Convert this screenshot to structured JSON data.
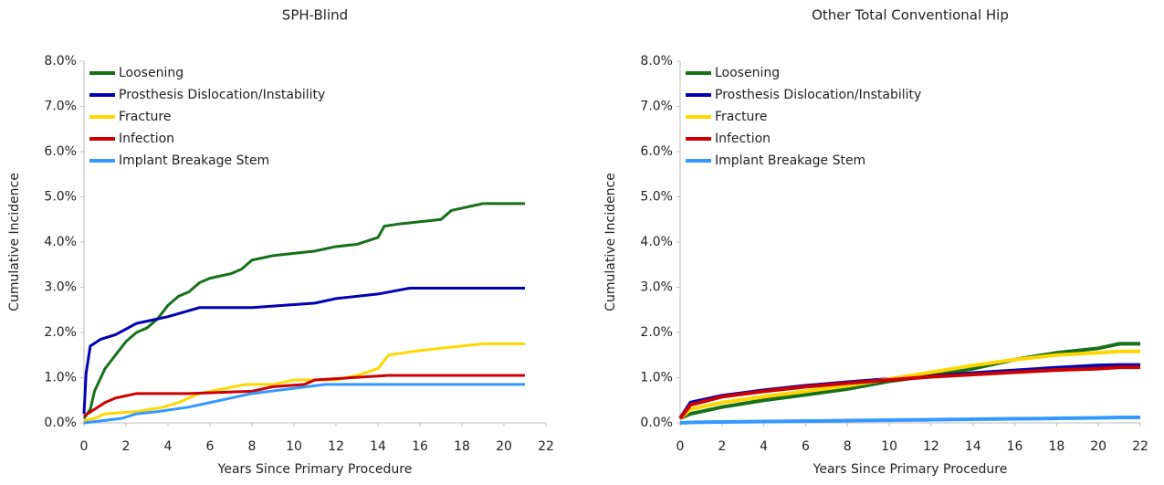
{
  "chart_data": [
    {
      "type": "line",
      "title": "SPH-Blind",
      "x_label": "Years Since Primary Procedure",
      "y_label": "Cumulative Incidence",
      "xlim": [
        0,
        22
      ],
      "xticks": [
        0,
        2,
        4,
        6,
        8,
        10,
        12,
        14,
        16,
        18,
        20,
        22
      ],
      "ylim": [
        0,
        8
      ],
      "yticks": [
        {
          "value": 0,
          "label": "0.0%"
        },
        {
          "value": 1,
          "label": "1.0%"
        },
        {
          "value": 2,
          "label": "2.0%"
        },
        {
          "value": 3,
          "label": "3.0%"
        },
        {
          "value": 4,
          "label": "4.0%"
        },
        {
          "value": 5,
          "label": "5.0%"
        },
        {
          "value": 6,
          "label": "6.0%"
        },
        {
          "value": 7,
          "label": "7.0%"
        },
        {
          "value": 8,
          "label": "8.0%"
        }
      ],
      "legend": "upper left",
      "series": [
        {
          "name": "Loosening",
          "color": "#16701a",
          "x": [
            0,
            0.3,
            0.5,
            0.8,
            1.0,
            1.5,
            2.0,
            2.5,
            3.0,
            3.5,
            4.0,
            4.5,
            5.0,
            5.5,
            6.0,
            7.0,
            7.5,
            8.0,
            9.0,
            11.0,
            12.0,
            13.0,
            14.0,
            14.3,
            15.0,
            17.0,
            17.5,
            19.0,
            21.0
          ],
          "values": [
            0.1,
            0.3,
            0.7,
            1.0,
            1.2,
            1.5,
            1.8,
            2.0,
            2.1,
            2.3,
            2.6,
            2.8,
            2.9,
            3.1,
            3.2,
            3.3,
            3.4,
            3.6,
            3.7,
            3.8,
            3.9,
            3.95,
            4.1,
            4.35,
            4.4,
            4.5,
            4.7,
            4.85,
            4.85
          ]
        },
        {
          "name": "Prosthesis Dislocation/Instability",
          "color": "#0000b4",
          "x": [
            0,
            0.1,
            0.3,
            0.8,
            1.5,
            2.5,
            4.0,
            5.5,
            8.0,
            11.0,
            12.0,
            14.0,
            15.5,
            21.0
          ],
          "values": [
            0.2,
            1.1,
            1.7,
            1.85,
            1.95,
            2.2,
            2.35,
            2.55,
            2.55,
            2.65,
            2.75,
            2.85,
            2.98,
            2.98
          ]
        },
        {
          "name": "Fracture",
          "color": "#ffd700",
          "x": [
            0,
            0.5,
            1.0,
            2.5,
            3.8,
            4.5,
            5.5,
            7.7,
            9.0,
            10.0,
            12.0,
            13.0,
            14.0,
            14.5,
            16.0,
            19.0,
            21.0
          ],
          "values": [
            0.05,
            0.1,
            0.2,
            0.25,
            0.35,
            0.45,
            0.65,
            0.85,
            0.85,
            0.95,
            0.95,
            1.05,
            1.2,
            1.5,
            1.6,
            1.75,
            1.75
          ]
        },
        {
          "name": "Infection",
          "color": "#cc0000",
          "x": [
            0,
            0.5,
            1.0,
            1.5,
            2.5,
            5.0,
            8.0,
            9.0,
            10.5,
            11.0,
            14.5,
            21.0
          ],
          "values": [
            0.15,
            0.3,
            0.45,
            0.55,
            0.65,
            0.65,
            0.7,
            0.8,
            0.85,
            0.95,
            1.05,
            1.05
          ]
        },
        {
          "name": "Implant Breakage Stem",
          "color": "#3399ff",
          "x": [
            0,
            1.8,
            2.5,
            3.5,
            5.0,
            6.0,
            7.5,
            8.0,
            11.5,
            13.0,
            21.0
          ],
          "values": [
            0,
            0.1,
            0.2,
            0.25,
            0.35,
            0.45,
            0.6,
            0.65,
            0.85,
            0.85,
            0.85
          ]
        }
      ]
    },
    {
      "type": "line",
      "title": "Other Total Conventional Hip",
      "x_label": "Years Since Primary Procedure",
      "y_label": "Cumulative Incidence",
      "xlim": [
        0,
        22
      ],
      "xticks": [
        0,
        2,
        4,
        6,
        8,
        10,
        12,
        14,
        16,
        18,
        20,
        22
      ],
      "ylim": [
        0,
        8
      ],
      "yticks": [
        {
          "value": 0,
          "label": "0.0%"
        },
        {
          "value": 1,
          "label": "1.0%"
        },
        {
          "value": 2,
          "label": "2.0%"
        },
        {
          "value": 3,
          "label": "3.0%"
        },
        {
          "value": 4,
          "label": "4.0%"
        },
        {
          "value": 5,
          "label": "5.0%"
        },
        {
          "value": 6,
          "label": "6.0%"
        },
        {
          "value": 7,
          "label": "7.0%"
        },
        {
          "value": 8,
          "label": "8.0%"
        }
      ],
      "legend": "upper left",
      "x": [
        0,
        0.5,
        2,
        4,
        6,
        8,
        10,
        12,
        14,
        16,
        18,
        20,
        21,
        22
      ],
      "series": [
        {
          "name": "Loosening",
          "color": "#16701a",
          "values": [
            0.1,
            0.2,
            0.35,
            0.5,
            0.62,
            0.75,
            0.92,
            1.05,
            1.2,
            1.4,
            1.55,
            1.65,
            1.75,
            1.75
          ]
        },
        {
          "name": "Prosthesis Dislocation/Instability",
          "color": "#0000b4",
          "values": [
            0.1,
            0.45,
            0.6,
            0.72,
            0.82,
            0.9,
            0.97,
            1.03,
            1.1,
            1.16,
            1.22,
            1.27,
            1.28,
            1.28
          ]
        },
        {
          "name": "Fracture",
          "color": "#ffd700",
          "values": [
            0.1,
            0.3,
            0.45,
            0.58,
            0.7,
            0.82,
            0.97,
            1.12,
            1.27,
            1.4,
            1.5,
            1.55,
            1.58,
            1.58
          ]
        },
        {
          "name": "Infection",
          "color": "#cc0000",
          "values": [
            0.1,
            0.4,
            0.58,
            0.7,
            0.8,
            0.88,
            0.95,
            1.02,
            1.07,
            1.12,
            1.17,
            1.2,
            1.23,
            1.23
          ]
        },
        {
          "name": "Implant Breakage Stem",
          "color": "#3399ff",
          "values": [
            0,
            0.01,
            0.02,
            0.03,
            0.04,
            0.05,
            0.06,
            0.07,
            0.08,
            0.09,
            0.1,
            0.11,
            0.12,
            0.12
          ]
        }
      ]
    }
  ]
}
